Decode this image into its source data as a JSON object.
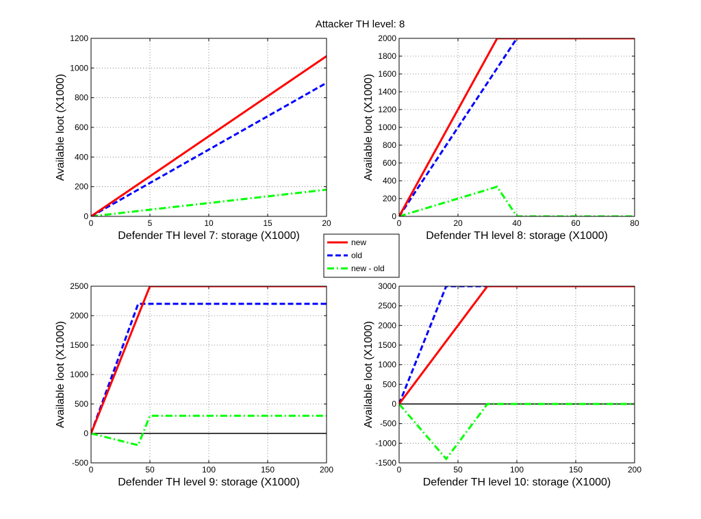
{
  "chart_data": {
    "type": "line",
    "title": "Attacker TH level: 8",
    "legend": {
      "placement": "center",
      "entries": [
        {
          "name": "new",
          "color": "#ff0000",
          "style": "solid"
        },
        {
          "name": "old",
          "color": "#0000ff",
          "style": "dashed"
        },
        {
          "name": "new - old",
          "color": "#00ff00",
          "style": "dashdot"
        }
      ]
    },
    "grid": true,
    "subplots": [
      {
        "xlabel": "Defender TH level 7: storage (X1000)",
        "ylabel": "Available loot (X1000)",
        "xlim": [
          0,
          20
        ],
        "ylim": [
          0,
          1200
        ],
        "xticks": [
          0,
          5,
          10,
          15,
          20
        ],
        "yticks": [
          0,
          200,
          400,
          600,
          800,
          1000,
          1200
        ],
        "zero_line": false,
        "series": [
          {
            "name": "new",
            "x": [
              0,
              20
            ],
            "y": [
              0,
              1080
            ]
          },
          {
            "name": "old",
            "x": [
              0,
              20
            ],
            "y": [
              0,
              900
            ]
          },
          {
            "name": "new - old",
            "x": [
              0,
              20
            ],
            "y": [
              0,
              180
            ]
          }
        ]
      },
      {
        "xlabel": "Defender TH level 8: storage (X1000)",
        "ylabel": "Available loot (X1000)",
        "xlim": [
          0,
          80
        ],
        "ylim": [
          0,
          2000
        ],
        "xticks": [
          0,
          20,
          40,
          60,
          80
        ],
        "yticks": [
          0,
          200,
          400,
          600,
          800,
          1000,
          1200,
          1400,
          1600,
          1800,
          2000
        ],
        "zero_line": false,
        "series": [
          {
            "name": "new",
            "x": [
              0,
              33.3,
              80
            ],
            "y": [
              0,
              2000,
              2000
            ]
          },
          {
            "name": "old",
            "x": [
              0,
              40,
              80
            ],
            "y": [
              0,
              2000,
              2000
            ]
          },
          {
            "name": "new - old",
            "x": [
              0,
              33.3,
              40,
              80
            ],
            "y": [
              0,
              333,
              0,
              0
            ]
          }
        ]
      },
      {
        "xlabel": "Defender TH level 9: storage (X1000)",
        "ylabel": "Available loot (X1000)",
        "xlim": [
          0,
          200
        ],
        "ylim": [
          -500,
          2500
        ],
        "xticks": [
          0,
          50,
          100,
          150,
          200
        ],
        "yticks": [
          -500,
          0,
          500,
          1000,
          1500,
          2000,
          2500
        ],
        "zero_line": true,
        "series": [
          {
            "name": "new",
            "x": [
              0,
              50,
              200
            ],
            "y": [
              0,
              2500,
              2500
            ]
          },
          {
            "name": "old",
            "x": [
              0,
              40,
              200
            ],
            "y": [
              0,
              2200,
              2200
            ]
          },
          {
            "name": "new - old",
            "x": [
              0,
              40,
              50,
              200
            ],
            "y": [
              0,
              -200,
              300,
              300
            ]
          }
        ]
      },
      {
        "xlabel": "Defender TH level 10: storage (X1000)",
        "ylabel": "Available loot (X1000)",
        "xlim": [
          0,
          200
        ],
        "ylim": [
          -1500,
          3000
        ],
        "xticks": [
          0,
          50,
          100,
          150,
          200
        ],
        "yticks": [
          -1500,
          -1000,
          -500,
          0,
          500,
          1000,
          1500,
          2000,
          2500,
          3000
        ],
        "zero_line": true,
        "series": [
          {
            "name": "new",
            "x": [
              0,
              75,
              200
            ],
            "y": [
              0,
              3000,
              3000
            ]
          },
          {
            "name": "old",
            "x": [
              0,
              40,
              200
            ],
            "y": [
              0,
              3000,
              3000
            ]
          },
          {
            "name": "new - old",
            "x": [
              0,
              40,
              75,
              200
            ],
            "y": [
              0,
              -1400,
              0,
              0
            ]
          }
        ]
      }
    ]
  }
}
